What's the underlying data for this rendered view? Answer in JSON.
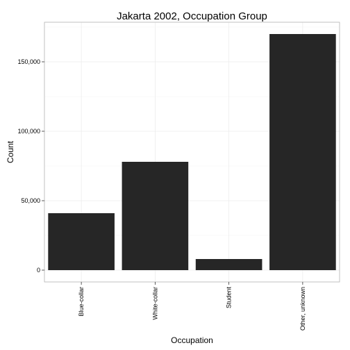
{
  "chart_data": {
    "type": "bar",
    "title": "Jakarta 2002, Occupation Group",
    "xlabel": "Occupation",
    "ylabel": "Count",
    "categories": [
      "Blue-collar",
      "White-collar",
      "Student",
      "Other, unknown"
    ],
    "values": [
      41000,
      78000,
      8000,
      170000
    ],
    "ylim": [
      -8500,
      178500
    ],
    "yticks": [
      0,
      50000,
      100000,
      150000
    ],
    "ytick_labels": [
      "0",
      "50,000",
      "100,000",
      "150,000"
    ],
    "grid": true,
    "bar_color": "#262626",
    "grid_color": "#ebebeb",
    "legend": "none"
  }
}
